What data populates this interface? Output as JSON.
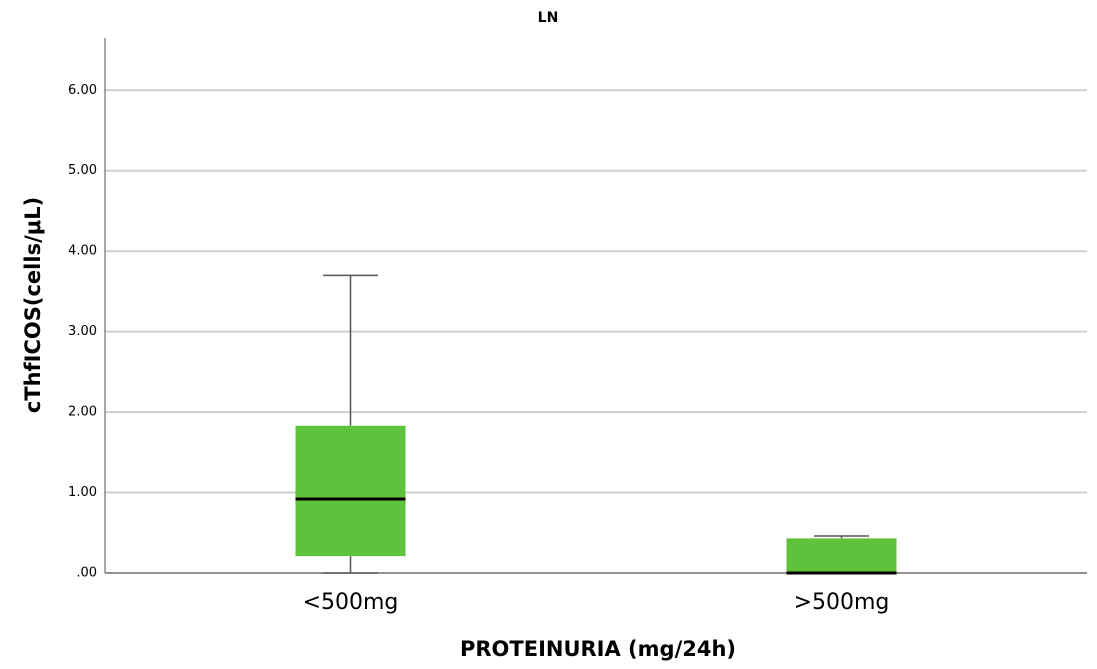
{
  "chart_data": {
    "type": "box",
    "title": "LN",
    "x_label": "PROTEINURIA (mg/24h)",
    "y_label": "cThfICOS(cells/μL)",
    "categories": [
      "<500mg",
      ">500mg"
    ],
    "boxes": [
      {
        "min": 0,
        "q1": 0.21,
        "median": 0.92,
        "q3": 1.83,
        "max": 3.7
      },
      {
        "min": 0,
        "q1": 0,
        "median": 0,
        "q3": 0.43,
        "max": 0.46
      }
    ],
    "color": "#5ec23a",
    "median_color": "#000000",
    "ylim": [
      0,
      6.65
    ],
    "yticks": [
      {
        "value": 0,
        "label": ".00"
      },
      {
        "value": 1,
        "label": "1.00"
      },
      {
        "value": 2,
        "label": "2.00"
      },
      {
        "value": 3,
        "label": "3.00"
      },
      {
        "value": 4,
        "label": "4.00"
      },
      {
        "value": 5,
        "label": "5.00"
      },
      {
        "value": 6,
        "label": "6.00"
      }
    ],
    "grid": true
  }
}
